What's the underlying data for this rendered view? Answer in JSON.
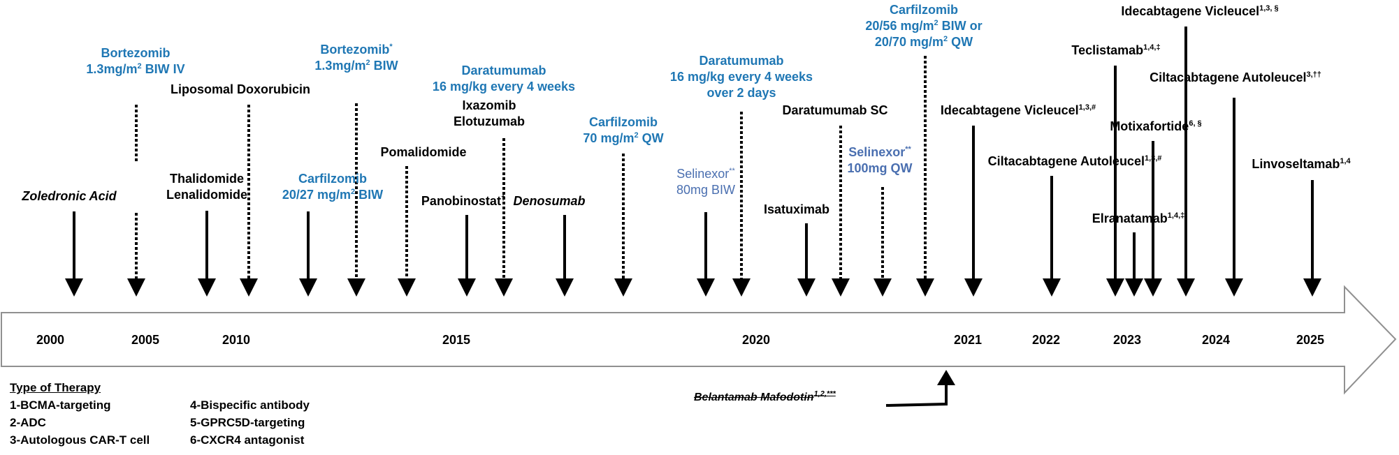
{
  "years": [
    "2000",
    "2005",
    "2010",
    "2015",
    "2020",
    "2021",
    "2022",
    "2023",
    "2024",
    "2025"
  ],
  "events": {
    "zoledronic": {
      "name": "Zoledronic Acid"
    },
    "bortezomib_iv": {
      "name": "Bortezomib",
      "dose": "1.3mg/m",
      "dose_sup": "2",
      "dose_suffix": " BIW IV"
    },
    "thal_len": {
      "line1": "Thalidomide",
      "line2": "Lenalidomide"
    },
    "lipo_dox": {
      "name": "Liposomal Doxorubicin"
    },
    "carfil_2027": {
      "name": "Carfilzomib",
      "dose": "20/27 mg/m",
      "dose_sup": "2",
      "dose_suffix": " BIW"
    },
    "bortezomib_sc": {
      "name": "Bortezomib",
      "name_sup": "*",
      "dose": "1.3mg/m",
      "dose_sup": "2",
      "dose_suffix": " BIW"
    },
    "pomalidomide": {
      "name": "Pomalidomide"
    },
    "panobinostat": {
      "name": "Panobinostat",
      "name_sup": "†"
    },
    "dara_4wk": {
      "name": "Daratumumab",
      "dose": "16 mg/kg every 4 weeks"
    },
    "ixa_elo": {
      "line1": "Ixazomib",
      "line2": "Elotuzumab"
    },
    "denosumab": {
      "name": "Denosumab"
    },
    "carfil_70": {
      "name": "Carfilzomib",
      "dose": "70 mg/m",
      "dose_sup": "2",
      "dose_suffix": " QW"
    },
    "selinexor_80": {
      "name": "Selinexor",
      "name_sup": "**",
      "dose": "80mg BIW"
    },
    "dara_2day": {
      "name": "Daratumumab",
      "dose": "16 mg/kg every 4 weeks",
      "dose2": "over 2 days"
    },
    "isatuximab": {
      "name": "Isatuximab"
    },
    "dara_sc": {
      "name": "Daratumumab SC"
    },
    "selinexor_100": {
      "name": "Selinexor",
      "name_sup": "**",
      "dose": "100mg QW"
    },
    "carfil_2056": {
      "name": "Carfilzomib",
      "dose1": "20/56 mg/m",
      "dose1_sup": "2",
      "dose1_suffix": " BIW or",
      "dose2": "20/70 mg/m",
      "dose2_sup": "2",
      "dose2_suffix": " QW"
    },
    "idecabtagene_2021": {
      "name": "Idecabtagene Vicleucel",
      "sup": "1,3,#"
    },
    "ciltacabtagene_2022": {
      "name": "Ciltacabtagene Autoleucel",
      "sup": "1,3,#"
    },
    "idecabtagene_2024": {
      "name": "Idecabtagene Vicleucel",
      "sup": "1,3, §"
    },
    "teclistamab": {
      "name": "Teclistamab",
      "sup": "1,4,‡"
    },
    "ciltacabtagene_2024": {
      "name": "Ciltacabtagene Autoleucel",
      "sup": "3,††"
    },
    "motixafortide": {
      "name": "Motixafortide",
      "sup": "6, §"
    },
    "elranatamab": {
      "name": "Elranatamab",
      "sup": "1,4,‡"
    },
    "linvoseltamab": {
      "name": "Linvoseltamab",
      "sup": "1,4"
    },
    "belantamab": {
      "name": "Belantamab Mafodotin",
      "sup": "1,2,***"
    }
  },
  "legend": {
    "title": "Type of Therapy",
    "items": [
      "1-BCMA-targeting",
      "2-ADC",
      "3-Autologous CAR-T cell",
      "4-Bispecific antibody",
      "5-GPRC5D-targeting",
      "6-CXCR4 antagonist"
    ]
  },
  "colors": {
    "blue_text": "#1f77b4",
    "slate_text": "#4a6fb0",
    "arrow": "#000000",
    "timeline_outline": "#909090"
  }
}
